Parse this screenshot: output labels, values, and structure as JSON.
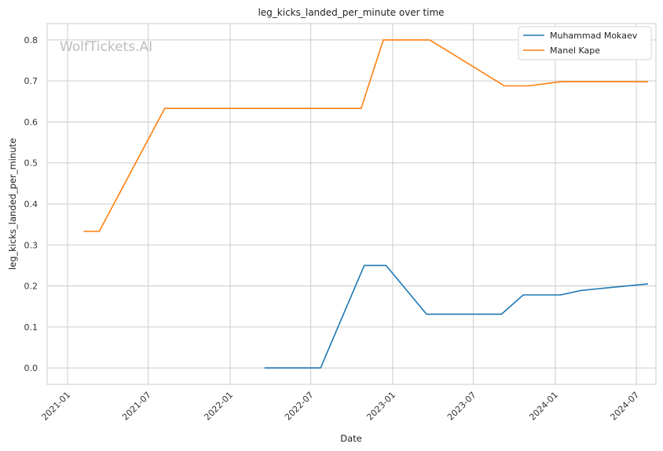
{
  "chart_data": {
    "type": "line",
    "title": "leg_kicks_landed_per_minute over time",
    "xlabel": "Date",
    "ylabel": "leg_kicks_landed_per_minute",
    "watermark": "WolfTickets.AI",
    "x_ticks": [
      "2021-01",
      "2021-07",
      "2022-01",
      "2022-07",
      "2023-01",
      "2023-07",
      "2024-01",
      "2024-07"
    ],
    "y_ticks": [
      "0.0",
      "0.1",
      "0.2",
      "0.3",
      "0.4",
      "0.5",
      "0.6",
      "0.7",
      "0.8"
    ],
    "xlim": [
      "2020-11-16",
      "2024-08-14"
    ],
    "ylim": [
      -0.04,
      0.84
    ],
    "grid": true,
    "legend_position": "top-right",
    "series": [
      {
        "name": "Muhammad Mokaev",
        "color": "#1f77b4",
        "x": [
          "2022-03-19",
          "2022-07-23",
          "2022-10-29",
          "2022-12-17",
          "2023-03-18",
          "2023-09-02",
          "2023-10-21",
          "2024-01-13",
          "2024-02-28",
          "2024-07-27"
        ],
        "y": [
          0.0,
          0.0,
          0.25,
          0.25,
          0.131,
          0.131,
          0.178,
          0.178,
          0.189,
          0.205
        ]
      },
      {
        "name": "Manel Kape",
        "color": "#ff7f0e",
        "x": [
          "2021-02-06",
          "2021-03-13",
          "2021-08-07",
          "2022-10-22",
          "2022-12-11",
          "2023-03-25",
          "2023-09-09",
          "2023-11-01",
          "2024-01-13",
          "2024-07-27"
        ],
        "y": [
          0.333,
          0.333,
          0.633,
          0.633,
          0.8,
          0.8,
          0.688,
          0.688,
          0.698,
          0.698
        ]
      }
    ]
  }
}
